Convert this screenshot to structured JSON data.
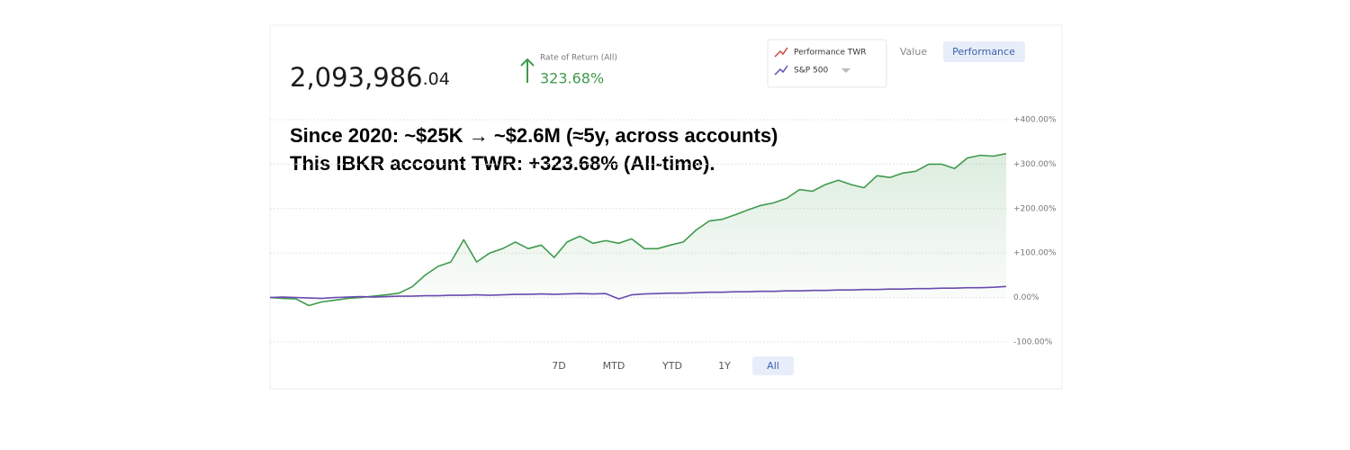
{
  "header": {
    "balance_main": "2,093,986",
    "balance_cents": ".04",
    "rate_label": "Rate of Return (All)",
    "rate_value": "323.68%"
  },
  "tabs": {
    "items": [
      "Value",
      "Performance"
    ],
    "active": 1
  },
  "ranges": {
    "items": [
      "7D",
      "MTD",
      "YTD",
      "1Y",
      "All"
    ],
    "active": 4
  },
  "annotation": [
    "Since 2020: ~$25K → ~$2.6M (≈5y, across accounts)",
    "This IBKR account TWR: +323.68% (All-time)."
  ],
  "chart_data": {
    "type": "line",
    "ylim": [
      -100,
      400
    ],
    "yticks": [
      {
        "value": 400,
        "label": "+400.00%"
      },
      {
        "value": 300,
        "label": "+300.00%"
      },
      {
        "value": 200,
        "label": "+200.00%"
      },
      {
        "value": 100,
        "label": "+100.00%"
      },
      {
        "value": 0,
        "label": "0.00%"
      },
      {
        "value": -100,
        "label": "-100.00%"
      }
    ],
    "grid": true,
    "legend": "top-right",
    "series": [
      {
        "name": "Performance TWR",
        "color": "#3f9a4c",
        "icon_color": "#c8473f",
        "fill": true,
        "values": [
          0,
          -2,
          -3,
          -18,
          -10,
          -6,
          -2,
          0,
          3,
          6,
          10,
          24,
          50,
          70,
          80,
          130,
          80,
          100,
          110,
          125,
          110,
          118,
          90,
          125,
          138,
          122,
          128,
          122,
          132,
          110,
          110,
          118,
          125,
          152,
          172,
          176,
          186,
          197,
          207,
          213,
          223,
          243,
          239,
          254,
          264,
          254,
          247,
          274,
          270,
          280,
          284,
          300,
          300,
          290,
          314,
          320,
          318,
          323.68
        ]
      },
      {
        "name": "S&P 500",
        "color": "#6a4bb0",
        "icon_color": "#6a4bb0",
        "fill": false,
        "values": [
          0,
          1,
          0,
          -1,
          -2,
          0,
          1,
          2,
          1,
          2,
          3,
          3,
          4,
          4,
          5,
          5,
          6,
          5,
          6,
          7,
          7,
          8,
          7,
          8,
          9,
          8,
          9,
          -3,
          6,
          8,
          9,
          10,
          10,
          11,
          12,
          12,
          13,
          13,
          14,
          14,
          15,
          15,
          16,
          16,
          17,
          17,
          18,
          18,
          19,
          19,
          20,
          20,
          21,
          21,
          22,
          22,
          23,
          25
        ]
      }
    ]
  }
}
